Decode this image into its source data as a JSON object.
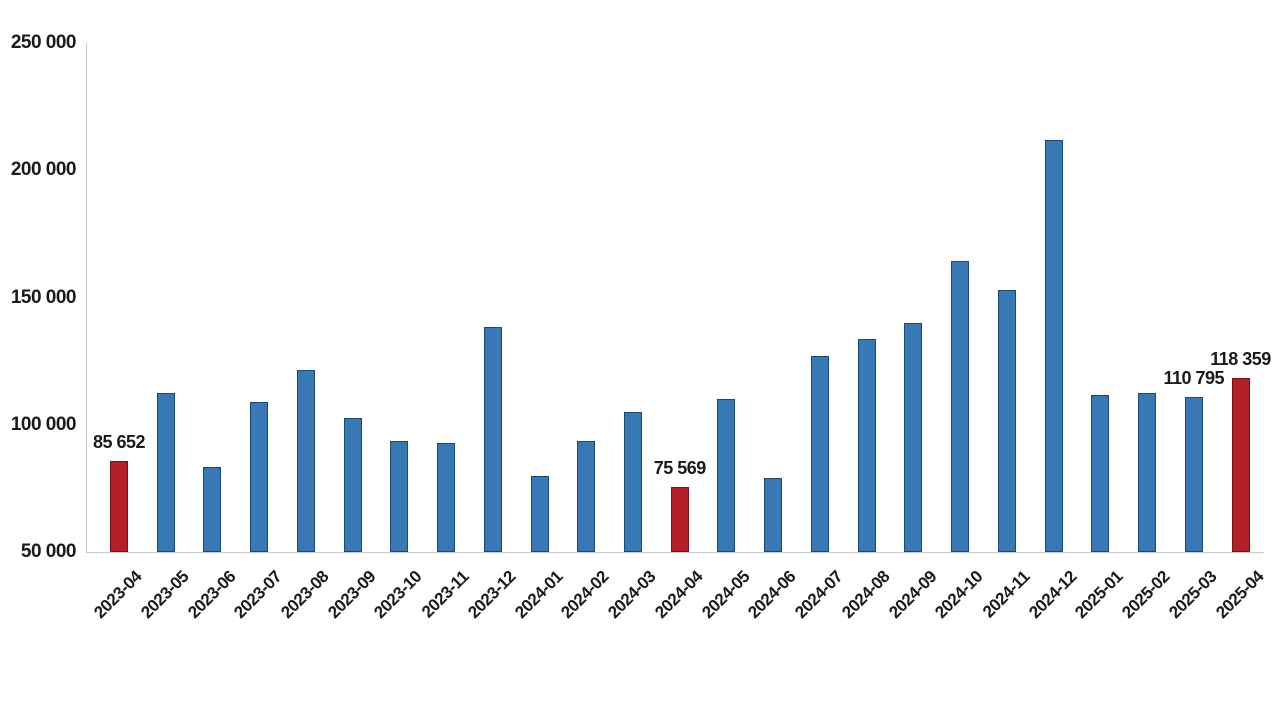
{
  "chart_data": {
    "type": "bar",
    "title": "",
    "xlabel": "",
    "ylabel": "",
    "grid": false,
    "legend": false,
    "y_axis": {
      "min": 50000,
      "max": 250000,
      "tick_step": 50000,
      "ticks": [
        {
          "value": 50000,
          "label": "50 000"
        },
        {
          "value": 100000,
          "label": "100 000"
        },
        {
          "value": 150000,
          "label": "150 000"
        },
        {
          "value": 200000,
          "label": "200 000"
        },
        {
          "value": 250000,
          "label": "250 000"
        }
      ]
    },
    "bars": [
      {
        "category": "2023-04",
        "value": 85652,
        "highlight": true,
        "data_label": "85 652"
      },
      {
        "category": "2023-05",
        "value": 112600,
        "highlight": false
      },
      {
        "category": "2023-06",
        "value": 83500,
        "highlight": false
      },
      {
        "category": "2023-07",
        "value": 109000,
        "highlight": false
      },
      {
        "category": "2023-08",
        "value": 121700,
        "highlight": false
      },
      {
        "category": "2023-09",
        "value": 102500,
        "highlight": false
      },
      {
        "category": "2023-10",
        "value": 93500,
        "highlight": false
      },
      {
        "category": "2023-11",
        "value": 93000,
        "highlight": false
      },
      {
        "category": "2023-12",
        "value": 138500,
        "highlight": false
      },
      {
        "category": "2024-01",
        "value": 80000,
        "highlight": false
      },
      {
        "category": "2024-02",
        "value": 93500,
        "highlight": false
      },
      {
        "category": "2024-03",
        "value": 105000,
        "highlight": false
      },
      {
        "category": "2024-04",
        "value": 75569,
        "highlight": true,
        "data_label": "75 569"
      },
      {
        "category": "2024-05",
        "value": 110300,
        "highlight": false
      },
      {
        "category": "2024-06",
        "value": 79000,
        "highlight": false
      },
      {
        "category": "2024-07",
        "value": 127000,
        "highlight": false
      },
      {
        "category": "2024-08",
        "value": 133500,
        "highlight": false
      },
      {
        "category": "2024-09",
        "value": 140000,
        "highlight": false
      },
      {
        "category": "2024-10",
        "value": 164500,
        "highlight": false
      },
      {
        "category": "2024-11",
        "value": 152800,
        "highlight": false
      },
      {
        "category": "2024-12",
        "value": 212000,
        "highlight": false
      },
      {
        "category": "2025-01",
        "value": 111800,
        "highlight": false
      },
      {
        "category": "2025-02",
        "value": 112600,
        "highlight": false
      },
      {
        "category": "2025-03",
        "value": 110795,
        "highlight": false,
        "data_label": "110 795"
      },
      {
        "category": "2025-04",
        "value": 118359,
        "highlight": true,
        "data_label": "118 359"
      }
    ],
    "colors": {
      "bar_fill": "#3878B5",
      "bar_border": "#1A4971",
      "highlight_fill": "#B22025",
      "highlight_border": "#7A1215",
      "axis_line": "#C9C9C9",
      "text": "#1A1A1A"
    }
  }
}
